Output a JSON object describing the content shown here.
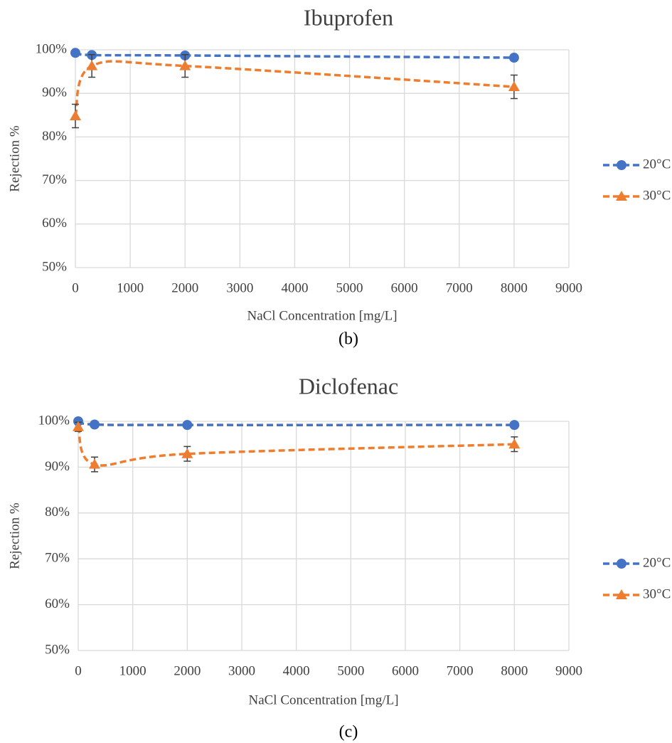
{
  "chart_data": [
    {
      "type": "line",
      "title": "Ibuprofen",
      "caption": "(b)",
      "x_label": "NaCl Concentration [mg/L]",
      "y_label": "Rejection %",
      "x": [
        0,
        300,
        2000,
        8000
      ],
      "series": [
        {
          "name": "20°C",
          "color": "#4472c4",
          "marker": "circle",
          "values": [
            99.3,
            98.8,
            98.7,
            98.2
          ]
        },
        {
          "name": "30°C",
          "color": "#ed7d31",
          "marker": "triangle",
          "values": [
            84.8,
            96.3,
            96.3,
            91.5
          ],
          "errors": [
            2.7,
            2.6,
            2.6,
            2.7
          ]
        }
      ],
      "xlim": [
        0,
        9000
      ],
      "xticks": [
        0,
        1000,
        2000,
        3000,
        4000,
        5000,
        6000,
        7000,
        8000,
        9000
      ],
      "ylim": [
        50,
        100
      ],
      "yticks": [
        {
          "value": 50,
          "label": "50%"
        },
        {
          "value": 60,
          "label": "60%"
        },
        {
          "value": 70,
          "label": "70%"
        },
        {
          "value": 80,
          "label": "80%"
        },
        {
          "value": 90,
          "label": "90%"
        },
        {
          "value": 100,
          "label": "100%"
        }
      ],
      "grid": true,
      "legend": "right",
      "line_style": "dashed",
      "smooth": true
    },
    {
      "type": "line",
      "title": "Diclofenac",
      "caption": "(c)",
      "x_label": "NaCl Concentration [mg/L]",
      "y_label": "Rejection %",
      "x": [
        0,
        300,
        2000,
        8000
      ],
      "series": [
        {
          "name": "20°C",
          "color": "#4472c4",
          "marker": "circle",
          "values": [
            100.0,
            99.3,
            99.2,
            99.2
          ]
        },
        {
          "name": "30°C",
          "color": "#ed7d31",
          "marker": "triangle",
          "values": [
            98.8,
            90.6,
            92.9,
            95.0
          ],
          "errors": [
            1.0,
            1.6,
            1.6,
            1.6
          ]
        }
      ],
      "xlim": [
        0,
        9000
      ],
      "xticks": [
        0,
        1000,
        2000,
        3000,
        4000,
        5000,
        6000,
        7000,
        8000,
        9000
      ],
      "ylim": [
        50,
        100
      ],
      "yticks": [
        {
          "value": 50,
          "label": "50%"
        },
        {
          "value": 60,
          "label": "60%"
        },
        {
          "value": 70,
          "label": "70%"
        },
        {
          "value": 80,
          "label": "80%"
        },
        {
          "value": 90,
          "label": "90%"
        },
        {
          "value": 100,
          "label": "100%"
        }
      ],
      "grid": true,
      "legend": "right",
      "line_style": "dashed",
      "smooth": true
    }
  ]
}
